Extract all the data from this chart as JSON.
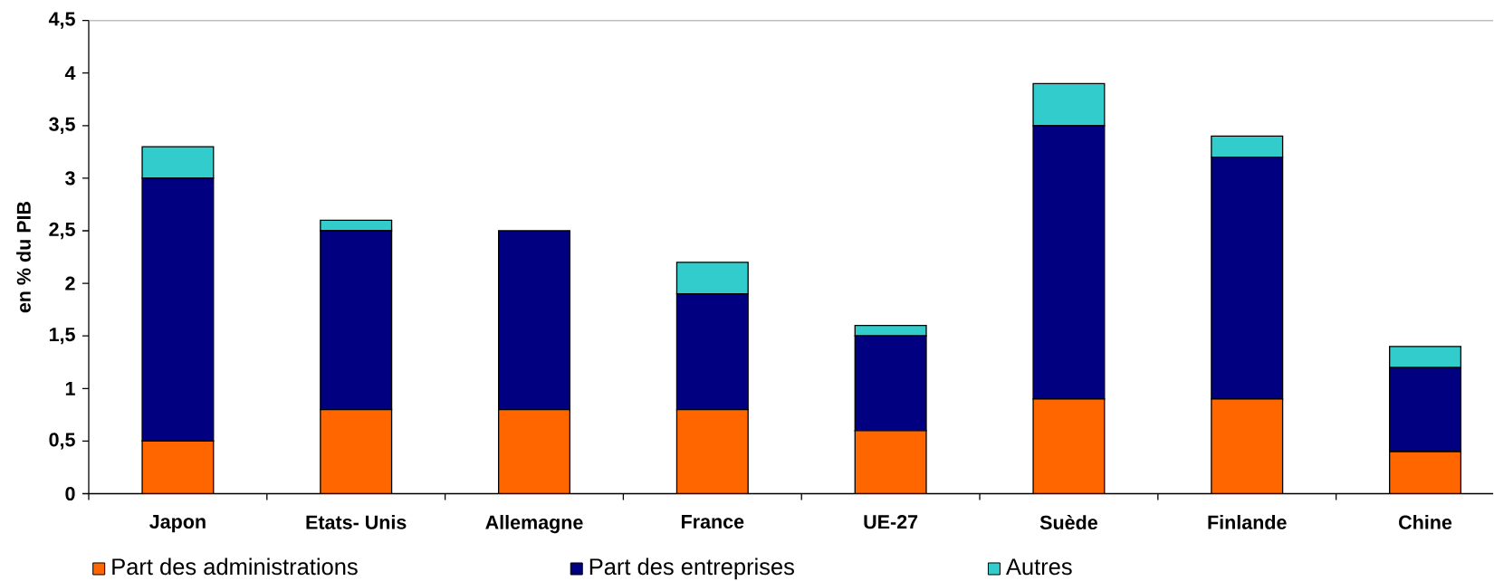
{
  "chart_data": {
    "type": "bar",
    "stacked": true,
    "ylabel": "en % du PIB",
    "categories": [
      "Japon",
      "Etats- Unis",
      "Allemagne",
      "France",
      "UE-27",
      "Suède",
      "Finlande",
      "Chine"
    ],
    "series": [
      {
        "name": "Part des administrations",
        "color": "#ff6600",
        "values": [
          0.5,
          0.8,
          0.8,
          0.8,
          0.6,
          0.9,
          0.9,
          0.4
        ]
      },
      {
        "name": "Part des entreprises",
        "color": "#000080",
        "values": [
          2.5,
          1.7,
          1.7,
          1.1,
          0.9,
          2.6,
          2.3,
          0.8
        ]
      },
      {
        "name": "Autres",
        "color": "#33cccc",
        "values": [
          0.3,
          0.1,
          null,
          0.3,
          0.1,
          0.4,
          0.2,
          0.2
        ]
      }
    ],
    "ylim": [
      0,
      4.5
    ],
    "yticks": [
      0,
      {
        "value": 0.5,
        "label": "0,5"
      },
      1,
      {
        "value": 1.5,
        "label": "1,5"
      },
      2,
      {
        "value": 2.5,
        "label": "2,5"
      },
      3,
      {
        "value": 3.5,
        "label": "3,5"
      },
      4,
      {
        "value": 4.5,
        "label": "4,5"
      }
    ],
    "legend": "bottom"
  }
}
